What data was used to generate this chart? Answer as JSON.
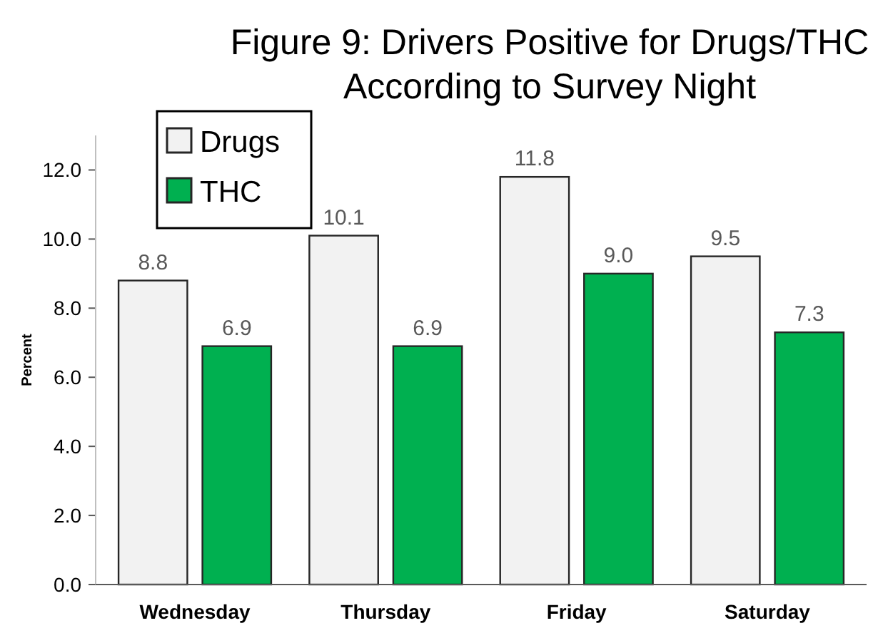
{
  "chart_data": {
    "type": "bar",
    "title": "Figure 9: Drivers Positive for Drugs/THC According to Survey Night",
    "ylabel": "Percent",
    "categories": [
      "Wednesday",
      "Thursday",
      "Friday",
      "Saturday"
    ],
    "series": [
      {
        "name": "Drugs",
        "color": "#f2f2f2",
        "values": [
          8.8,
          10.1,
          11.8,
          9.5
        ],
        "value_labels": [
          "8.8",
          "10.1",
          "11.8",
          "9.5"
        ]
      },
      {
        "name": "THC",
        "color": "#00b050",
        "values": [
          6.9,
          6.9,
          9.0,
          7.3
        ],
        "value_labels": [
          "6.9",
          "6.9",
          "9.0",
          "7.3"
        ]
      }
    ],
    "ylim": [
      0,
      13
    ],
    "yticks": [
      {
        "value": 0,
        "label": "0.0"
      },
      {
        "value": 2,
        "label": "2.0"
      },
      {
        "value": 4,
        "label": "4.0"
      },
      {
        "value": 6,
        "label": "6.0"
      },
      {
        "value": 8,
        "label": "8.0"
      },
      {
        "value": 10,
        "label": "10.0"
      },
      {
        "value": 12,
        "label": "12.0"
      }
    ],
    "legend": "top left",
    "grid": false
  }
}
